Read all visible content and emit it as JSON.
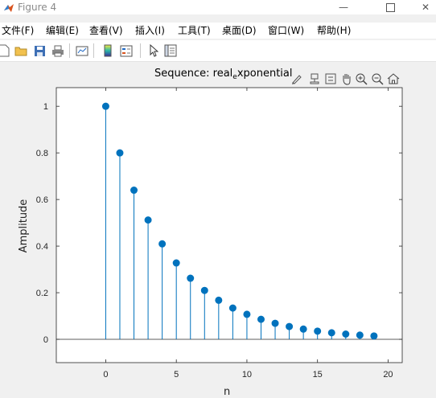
{
  "window": {
    "title": "Figure 4"
  },
  "menu": [
    {
      "label": "文件(F)"
    },
    {
      "label": "编辑(E)"
    },
    {
      "label": "查看(V)"
    },
    {
      "label": "插入(I)"
    },
    {
      "label": "工具(T)"
    },
    {
      "label": "桌面(D)"
    },
    {
      "label": "窗口(W)"
    },
    {
      "label": "帮助(H)"
    }
  ],
  "toolbar_icons": [
    "new-figure-icon",
    "open-folder-icon",
    "save-icon",
    "print-icon",
    "link-plot-icon",
    "colorbar-icon",
    "legend-icon",
    "edit-plot-arrow-icon",
    "property-inspector-icon"
  ],
  "axes_toolbar_icons": [
    "brush-icon",
    "data-tips-icon",
    "link-axes-icon",
    "pan-hand-icon",
    "zoom-in-icon",
    "zoom-out-icon",
    "home-icon"
  ],
  "plot": {
    "title_main": "Sequence: real",
    "title_sub": "e",
    "title_rest": "xponential",
    "xlabel": "n",
    "ylabel": "Amplitude"
  },
  "chart_data": {
    "type": "stem",
    "title": "Sequence: real_exponential",
    "xlabel": "n",
    "ylabel": "Amplitude",
    "xlim": [
      -3.5,
      21
    ],
    "ylim": [
      -0.1,
      1.08
    ],
    "xticks": [
      0,
      5,
      10,
      15,
      20
    ],
    "yticks": [
      0,
      0.2,
      0.4,
      0.6,
      0.8,
      1
    ],
    "x": [
      0,
      1,
      2,
      3,
      4,
      5,
      6,
      7,
      8,
      9,
      10,
      11,
      12,
      13,
      14,
      15,
      16,
      17,
      18,
      19
    ],
    "values": [
      1,
      0.8,
      0.64,
      0.512,
      0.4096,
      0.3277,
      0.2621,
      0.2097,
      0.1678,
      0.1342,
      0.1074,
      0.0859,
      0.0687,
      0.055,
      0.044,
      0.0352,
      0.0281,
      0.0225,
      0.018,
      0.0144
    ],
    "color": "#0072bd"
  }
}
